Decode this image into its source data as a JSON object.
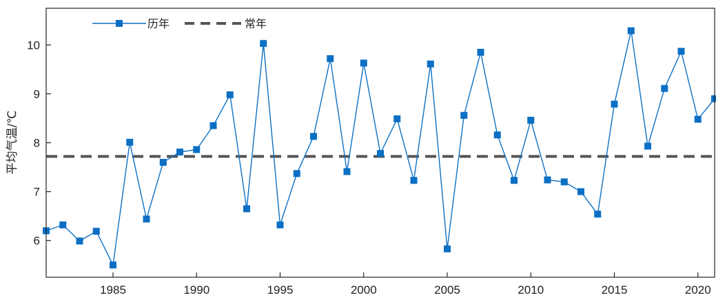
{
  "chart_data": {
    "type": "line",
    "title": "",
    "xlabel": "",
    "ylabel": "平均气温/℃",
    "xlim": [
      1981,
      2021
    ],
    "ylim": [
      5.25,
      10.75
    ],
    "x_ticks": [
      1985,
      1990,
      1995,
      2000,
      2005,
      2010,
      2015,
      2020
    ],
    "y_ticks": [
      6,
      7,
      8,
      9,
      10
    ],
    "grid": false,
    "legend_position": "top-left",
    "colors": {
      "series": "#0b6fc4",
      "normal": "#555555"
    },
    "series": [
      {
        "name": "历年",
        "style": "line-square-marker",
        "x": [
          1981,
          1982,
          1983,
          1984,
          1985,
          1986,
          1987,
          1988,
          1989,
          1990,
          1991,
          1992,
          1993,
          1994,
          1995,
          1996,
          1997,
          1998,
          1999,
          2000,
          2001,
          2002,
          2003,
          2004,
          2005,
          2006,
          2007,
          2008,
          2009,
          2010,
          2011,
          2012,
          2013,
          2014,
          2015,
          2016,
          2017,
          2018,
          2019,
          2020,
          2021
        ],
        "values": [
          6.2,
          6.32,
          5.99,
          6.19,
          5.5,
          8.01,
          6.44,
          7.6,
          7.81,
          7.86,
          8.35,
          8.98,
          6.65,
          10.03,
          6.32,
          7.37,
          8.13,
          9.72,
          7.41,
          9.63,
          7.78,
          8.49,
          7.23,
          9.61,
          5.83,
          8.56,
          9.85,
          8.16,
          7.23,
          8.46,
          7.24,
          7.2,
          7.0,
          6.54,
          8.79,
          10.29,
          7.93,
          9.11,
          9.87,
          8.48,
          8.9
        ]
      },
      {
        "name": "常年",
        "style": "dashed",
        "value": 7.72
      }
    ]
  }
}
